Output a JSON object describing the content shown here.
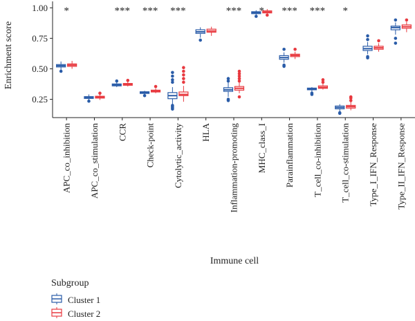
{
  "chart_data": {
    "type": "box",
    "ylabel": "Enrichment score",
    "xlabel": "Immune cell",
    "ylim": [
      0.1,
      1.03
    ],
    "yticks": [
      "0.25",
      "0.50",
      "0.75",
      "1.00"
    ],
    "grid": false,
    "legend": {
      "title": "Subgroup",
      "placement": "bottom-left"
    },
    "categories": [
      "APC_co_inhibition",
      "APC_co_stimulation",
      "CCR",
      "Check-point",
      "Cytolytic_activity",
      "HLA",
      "Inflammation-promoting",
      "MHC_class_I",
      "Parainflammation",
      "T_cell_co-inhibition",
      "T_cell_co-stimulation",
      "Type_I_IFN_Response",
      "Type_II_IFN_Response"
    ],
    "significance": [
      "*",
      "",
      "***",
      "***",
      "***",
      "",
      "***",
      "*",
      "***",
      "***",
      "*",
      "",
      ""
    ],
    "series": [
      {
        "name": "Cluster 1",
        "color": "#2a5ca8",
        "boxes": [
          {
            "min": 0.49,
            "q1": 0.515,
            "median": 0.525,
            "q3": 0.535,
            "max": 0.56,
            "outliers": [
              0.48
            ]
          },
          {
            "min": 0.24,
            "q1": 0.257,
            "median": 0.265,
            "q3": 0.272,
            "max": 0.29,
            "outliers": [
              0.235
            ]
          },
          {
            "min": 0.35,
            "q1": 0.36,
            "median": 0.368,
            "q3": 0.376,
            "max": 0.39,
            "outliers": [
              0.4
            ]
          },
          {
            "min": 0.29,
            "q1": 0.298,
            "median": 0.305,
            "q3": 0.312,
            "max": 0.32,
            "outliers": [
              0.28
            ]
          },
          {
            "min": 0.21,
            "q1": 0.255,
            "median": 0.28,
            "q3": 0.305,
            "max": 0.35,
            "outliers": [
              0.39,
              0.41,
              0.44,
              0.47,
              0.2,
              0.19,
              0.18,
              0.17
            ]
          },
          {
            "min": 0.755,
            "q1": 0.79,
            "median": 0.803,
            "q3": 0.82,
            "max": 0.84,
            "outliers": [
              0.735
            ]
          },
          {
            "min": 0.27,
            "q1": 0.315,
            "median": 0.328,
            "q3": 0.345,
            "max": 0.39,
            "outliers": [
              0.4,
              0.42,
              0.25,
              0.24
            ]
          },
          {
            "min": 0.94,
            "q1": 0.952,
            "median": 0.96,
            "q3": 0.968,
            "max": 0.98,
            "outliers": [
              0.93
            ]
          },
          {
            "min": 0.55,
            "q1": 0.578,
            "median": 0.592,
            "q3": 0.608,
            "max": 0.635,
            "outliers": [
              0.66,
              0.53,
              0.52
            ]
          },
          {
            "min": 0.31,
            "q1": 0.328,
            "median": 0.335,
            "q3": 0.342,
            "max": 0.35,
            "outliers": [
              0.3,
              0.29
            ]
          },
          {
            "min": 0.15,
            "q1": 0.172,
            "median": 0.183,
            "q3": 0.195,
            "max": 0.21,
            "outliers": [
              0.14,
              0.135
            ]
          },
          {
            "min": 0.62,
            "q1": 0.65,
            "median": 0.665,
            "q3": 0.685,
            "max": 0.72,
            "outliers": [
              0.74,
              0.77,
              0.6,
              0.59
            ]
          },
          {
            "min": 0.78,
            "q1": 0.82,
            "median": 0.838,
            "q3": 0.85,
            "max": 0.88,
            "outliers": [
              0.9,
              0.75,
              0.71
            ]
          }
        ]
      },
      {
        "name": "Cluster 2",
        "color": "#e8393f",
        "boxes": [
          {
            "min": 0.5,
            "q1": 0.52,
            "median": 0.53,
            "q3": 0.54,
            "max": 0.565,
            "outliers": []
          },
          {
            "min": 0.245,
            "q1": 0.26,
            "median": 0.268,
            "q3": 0.275,
            "max": 0.29,
            "outliers": [
              0.3
            ]
          },
          {
            "min": 0.355,
            "q1": 0.365,
            "median": 0.372,
            "q3": 0.38,
            "max": 0.395,
            "outliers": [
              0.405
            ]
          },
          {
            "min": 0.3,
            "q1": 0.31,
            "median": 0.318,
            "q3": 0.325,
            "max": 0.34,
            "outliers": [
              0.355
            ]
          },
          {
            "min": 0.23,
            "q1": 0.28,
            "median": 0.29,
            "q3": 0.31,
            "max": 0.36,
            "outliers": [
              0.39,
              0.42,
              0.45,
              0.48,
              0.51
            ]
          },
          {
            "min": 0.77,
            "q1": 0.8,
            "median": 0.81,
            "q3": 0.825,
            "max": 0.845,
            "outliers": []
          },
          {
            "min": 0.3,
            "q1": 0.325,
            "median": 0.34,
            "q3": 0.355,
            "max": 0.39,
            "outliers": [
              0.4,
              0.42,
              0.44,
              0.46,
              0.48,
              0.27
            ]
          },
          {
            "min": 0.95,
            "q1": 0.958,
            "median": 0.966,
            "q3": 0.975,
            "max": 0.99,
            "outliers": [
              0.94
            ]
          },
          {
            "min": 0.58,
            "q1": 0.6,
            "median": 0.61,
            "q3": 0.62,
            "max": 0.64,
            "outliers": [
              0.66
            ]
          },
          {
            "min": 0.33,
            "q1": 0.34,
            "median": 0.348,
            "q3": 0.36,
            "max": 0.38,
            "outliers": [
              0.39,
              0.41
            ]
          },
          {
            "min": 0.16,
            "q1": 0.178,
            "median": 0.19,
            "q3": 0.2,
            "max": 0.23,
            "outliers": [
              0.24,
              0.26,
              0.27
            ]
          },
          {
            "min": 0.64,
            "q1": 0.66,
            "median": 0.672,
            "q3": 0.685,
            "max": 0.71,
            "outliers": [
              0.73
            ]
          },
          {
            "min": 0.8,
            "q1": 0.832,
            "median": 0.845,
            "q3": 0.86,
            "max": 0.885,
            "outliers": [
              0.9
            ]
          }
        ]
      }
    ]
  }
}
